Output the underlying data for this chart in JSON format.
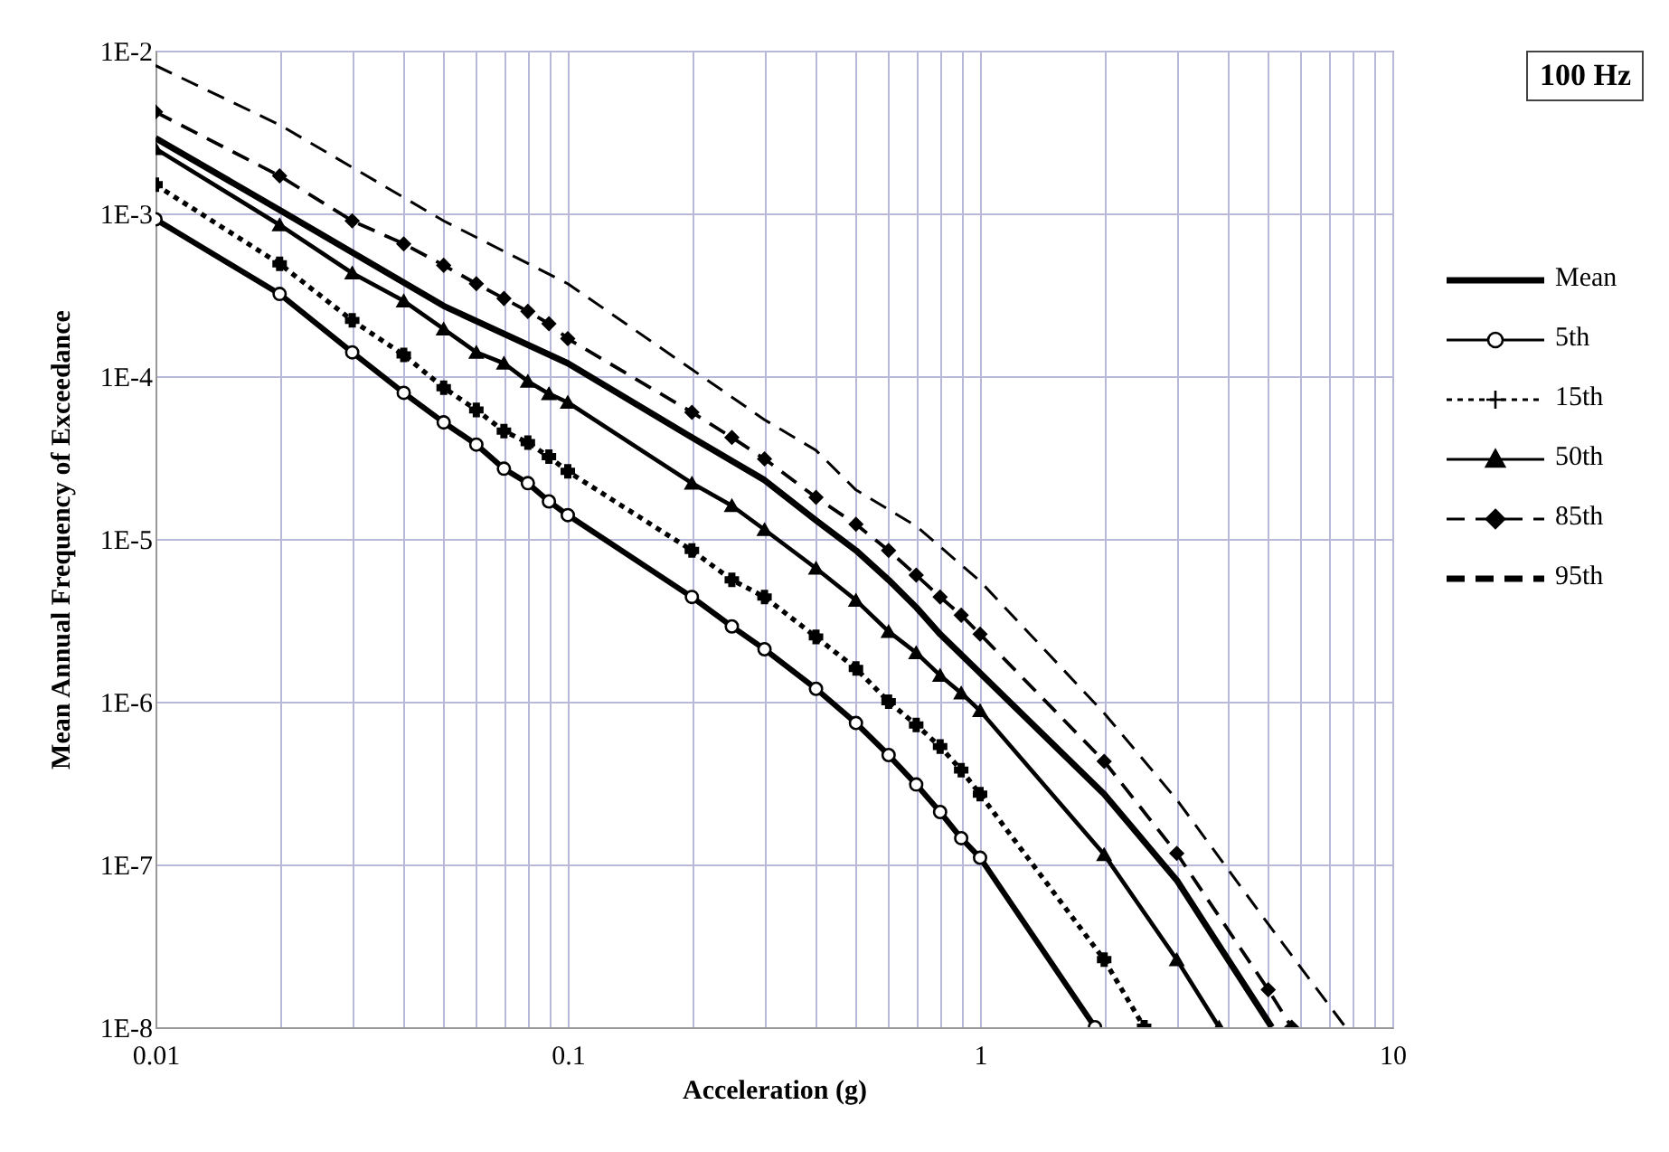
{
  "chart_data": {
    "type": "line",
    "xlabel": "Acceleration (g)",
    "ylabel": "Mean Annual Frequency of Exceedance",
    "annotations": [
      "100 Hz"
    ],
    "log": "xy",
    "grid": true,
    "legend": "right",
    "xlim": [
      0.01,
      10
    ],
    "ylim": [
      1e-08,
      0.01
    ],
    "xticks": [
      0.01,
      {
        "value": 0.02,
        "label": null
      },
      {
        "value": 0.03,
        "label": null
      },
      {
        "value": 0.04,
        "label": null
      },
      {
        "value": 0.05,
        "label": null
      },
      {
        "value": 0.06,
        "label": null
      },
      {
        "value": 0.07,
        "label": null
      },
      {
        "value": 0.08,
        "label": null
      },
      {
        "value": 0.09,
        "label": null
      },
      0.1,
      {
        "value": 0.2,
        "label": null
      },
      {
        "value": 0.3,
        "label": null
      },
      {
        "value": 0.4,
        "label": null
      },
      {
        "value": 0.5,
        "label": null
      },
      {
        "value": 0.6,
        "label": null
      },
      {
        "value": 0.7,
        "label": null
      },
      {
        "value": 0.8,
        "label": null
      },
      {
        "value": 0.9,
        "label": null
      },
      1,
      {
        "value": 2,
        "label": null
      },
      {
        "value": 3,
        "label": null
      },
      {
        "value": 4,
        "label": null
      },
      {
        "value": 5,
        "label": null
      },
      {
        "value": 6,
        "label": null
      },
      {
        "value": 7,
        "label": null
      },
      {
        "value": 8,
        "label": null
      },
      {
        "value": 9,
        "label": null
      },
      10
    ],
    "yticks": [
      {
        "value": 1e-08,
        "label": "1E-8"
      },
      {
        "value": 1e-07,
        "label": "1E-7"
      },
      {
        "value": 1e-06,
        "label": "1E-6"
      },
      {
        "value": 1e-05,
        "label": "1E-5"
      },
      {
        "value": 0.0001,
        "label": "1E-4"
      },
      {
        "value": 0.001,
        "label": "1E-3"
      },
      {
        "value": 0.01,
        "label": "1E-2"
      }
    ],
    "series": [
      {
        "name": "Mean",
        "color": "#000000",
        "marker": "none",
        "line_style": "solid",
        "x": [
          0.01,
          0.02,
          0.05,
          0.1,
          0.2,
          0.3,
          0.4,
          0.5,
          0.6,
          0.7,
          0.8,
          1,
          2,
          3,
          5.1
        ],
        "values": [
          0.0029,
          0.00105,
          0.00027,
          0.00012,
          4.2e-05,
          2.3e-05,
          1.3e-05,
          8.5e-06,
          5.6e-06,
          3.8e-06,
          2.6e-06,
          1.5e-06,
          2.7e-07,
          8e-08,
          1e-08
        ]
      },
      {
        "name": "5th",
        "color": "#000000",
        "marker": "circle",
        "line_style": "solid",
        "x": [
          0.01,
          0.02,
          0.03,
          0.04,
          0.05,
          0.06,
          0.07,
          0.08,
          0.09,
          0.1,
          0.2,
          0.25,
          0.3,
          0.4,
          0.5,
          0.6,
          0.7,
          0.8,
          0.9,
          1,
          1.9
        ],
        "values": [
          0.00092,
          0.00032,
          0.00014,
          7.9e-05,
          5.2e-05,
          3.8e-05,
          2.7e-05,
          2.2e-05,
          1.7e-05,
          1.4e-05,
          4.4e-06,
          2.9e-06,
          2.1e-06,
          1.2e-06,
          7.4e-07,
          4.7e-07,
          3.1e-07,
          2.1e-07,
          1.45e-07,
          1.1e-07,
          1e-08
        ]
      },
      {
        "name": "15th",
        "color": "#000000",
        "marker": "cross",
        "line_style": "dotted",
        "x": [
          0.01,
          0.02,
          0.03,
          0.04,
          0.05,
          0.06,
          0.07,
          0.08,
          0.09,
          0.1,
          0.2,
          0.25,
          0.3,
          0.4,
          0.5,
          0.6,
          0.7,
          0.8,
          0.9,
          1,
          2,
          2.5
        ],
        "values": [
          0.0015,
          0.00049,
          0.00022,
          0.000135,
          8.5e-05,
          6.2e-05,
          4.6e-05,
          3.9e-05,
          3.2e-05,
          2.6e-05,
          8.5e-06,
          5.6e-06,
          4.4e-06,
          2.5e-06,
          1.6e-06,
          1e-06,
          7.2e-07,
          5.3e-07,
          3.8e-07,
          2.7e-07,
          2.6e-08,
          1e-08
        ]
      },
      {
        "name": "50th",
        "color": "#000000",
        "marker": "triangle",
        "line_style": "solid",
        "x": [
          0.01,
          0.02,
          0.03,
          0.04,
          0.05,
          0.06,
          0.07,
          0.08,
          0.09,
          0.1,
          0.2,
          0.25,
          0.3,
          0.4,
          0.5,
          0.6,
          0.7,
          0.8,
          0.9,
          1,
          2,
          3,
          3.8
        ],
        "values": [
          0.0025,
          0.00085,
          0.00043,
          0.00029,
          0.000195,
          0.00014,
          0.00012,
          9.3e-05,
          7.8e-05,
          6.9e-05,
          2.2e-05,
          1.6e-05,
          1.14e-05,
          6.6e-06,
          4.2e-06,
          2.7e-06,
          2e-06,
          1.45e-06,
          1.13e-06,
          8.8e-07,
          1.15e-07,
          2.6e-08,
          1e-08
        ]
      },
      {
        "name": "85th",
        "color": "#000000",
        "marker": "diamond",
        "line_style": "dashed",
        "x": [
          0.01,
          0.02,
          0.03,
          0.04,
          0.05,
          0.06,
          0.07,
          0.08,
          0.09,
          0.1,
          0.2,
          0.25,
          0.3,
          0.4,
          0.5,
          0.6,
          0.7,
          0.8,
          0.9,
          1,
          2,
          3,
          5,
          5.7
        ],
        "values": [
          0.0042,
          0.0017,
          0.0009,
          0.00065,
          0.00048,
          0.00037,
          0.0003,
          0.00025,
          0.00021,
          0.00017,
          6e-05,
          4.2e-05,
          3.1e-05,
          1.8e-05,
          1.23e-05,
          8.5e-06,
          6e-06,
          4.4e-06,
          3.4e-06,
          2.6e-06,
          4.3e-07,
          1.17e-07,
          1.7e-08,
          1e-08
        ]
      },
      {
        "name": "95th",
        "color": "#000000",
        "marker": "none",
        "line_style": "dashed",
        "x": [
          0.01,
          0.02,
          0.05,
          0.1,
          0.2,
          0.3,
          0.4,
          0.5,
          0.7,
          1,
          2,
          3,
          5,
          7.7
        ],
        "values": [
          0.0081,
          0.0035,
          0.0009,
          0.00037,
          0.00011,
          5.4e-05,
          3.5e-05,
          2e-05,
          1.2e-05,
          5.5e-06,
          8.5e-07,
          2.5e-07,
          4.3e-08,
          1e-08
        ]
      }
    ]
  }
}
